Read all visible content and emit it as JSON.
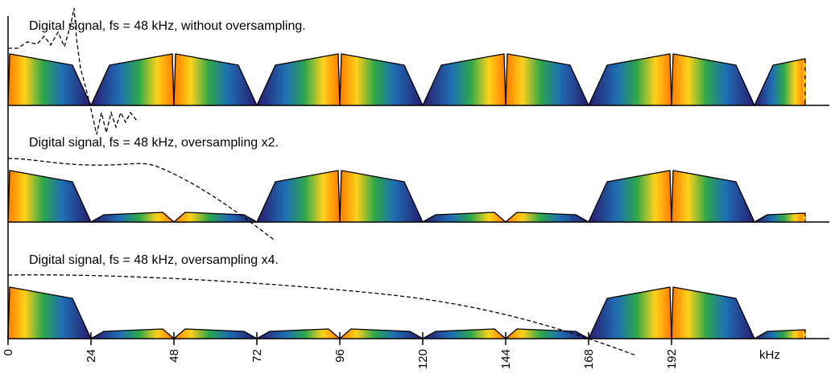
{
  "panels": [
    {
      "caption": "Digital signal, fs = 48 kHz, without oversampling.",
      "oversampling": 1,
      "pattern": [
        "L",
        "R",
        "L",
        "R",
        "L",
        "R",
        "L",
        "R",
        "L",
        "R"
      ]
    },
    {
      "caption": "Digital signal, fs = 48 kHz, oversampling x2.",
      "oversampling": 2,
      "pattern": [
        "L",
        "sR",
        "sL",
        "R",
        "L",
        "sR",
        "sL",
        "R",
        "L",
        "sR"
      ]
    },
    {
      "caption": "Digital signal, fs = 48 kHz, oversampling x4.",
      "oversampling": 4,
      "pattern": [
        "L",
        "sR",
        "sL",
        "sR",
        "sL",
        "sR",
        "sL",
        "R",
        "L",
        "sR"
      ]
    }
  ],
  "axis": {
    "unit": "kHz",
    "ticks": [
      "0",
      "24",
      "48",
      "72",
      "96",
      "120",
      "144",
      "168",
      "192"
    ],
    "band_khz": 24
  },
  "colors": {
    "orange": "#ff7a00",
    "yellow": "#ffd21a",
    "green": "#2ea74a",
    "blue": "#1e6fb4",
    "navy": "#2b1b6e",
    "edge_fill": "#ffbe14"
  }
}
